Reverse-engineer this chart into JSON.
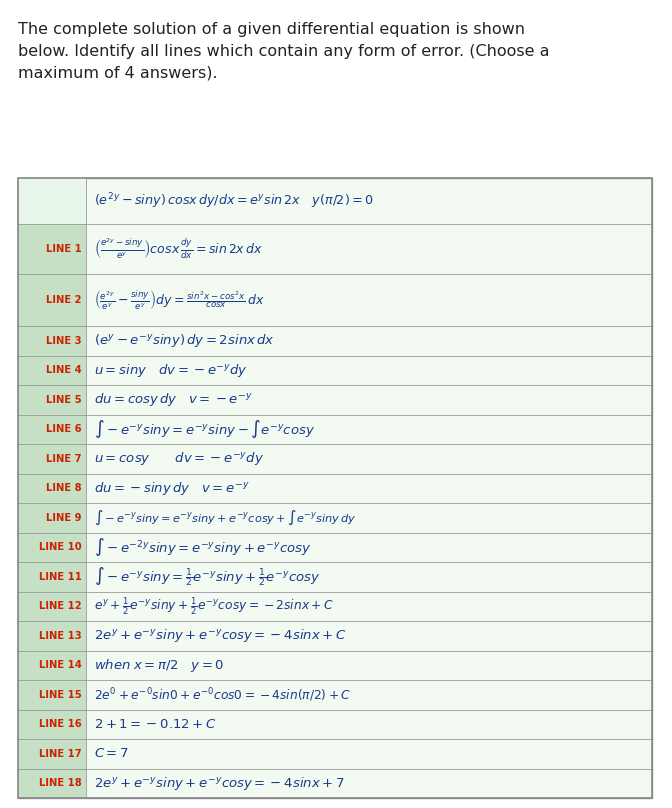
{
  "bg_color": "#ffffff",
  "table_bg": "#f2faf2",
  "col_left_bg": "#c5e0c5",
  "header_row_bg": "#e8f5e9",
  "line_label_color": "#cc2200",
  "content_color": "#1a3a8c",
  "border_color": "#999999",
  "title_lines": [
    "The complete solution of a given differential equation is shown",
    "below. Identify all lines which contain any form of error. (Choose a",
    "maximum of 4 answers)."
  ],
  "lines": [
    {
      "label": "",
      "content": "$(e^{2y} - siny)\\, cosx\\, dy/dx = e^y sin\\,2x \\quad y(\\pi/2)=0$"
    },
    {
      "label": "LINE 1",
      "content": "$\\left(\\frac{e^{2y}-siny}{e^y}\\right) cosx\\, \\frac{dy}{dx} = sin\\,2x\\,dx$"
    },
    {
      "label": "LINE 2",
      "content": "$\\left(\\frac{e^{2y}}{e^y} - \\frac{siny}{e^y}\\right) dy = \\frac{sin^2x - cos^2x}{cosx}\\, dx$"
    },
    {
      "label": "LINE 3",
      "content": "$(e^y - e^{-y}siny)\\, dy = 2sinx\\,dx$"
    },
    {
      "label": "LINE 4",
      "content": "$u = siny \\quad dv = -e^{-y}dy$"
    },
    {
      "label": "LINE 5",
      "content": "$du = cosy\\,dy \\quad v = -e^{-y}$"
    },
    {
      "label": "LINE 6",
      "content": "$\\int-e^{-y}siny = e^{-y}siny - \\int e^{-y}cosy$"
    },
    {
      "label": "LINE 7",
      "content": "$u = cosy \\qquad dv = -e^{-y}dy$"
    },
    {
      "label": "LINE 8",
      "content": "$du = -siny\\,dy \\quad v = e^{-y}$"
    },
    {
      "label": "LINE 9",
      "content": "$\\int-e^{-y}siny = e^{-y}siny + e^{-y}cosy + \\int e^{-y}siny\\,dy$"
    },
    {
      "label": "LINE 10",
      "content": "$\\int-e^{-2y}siny = e^{-y}siny + e^{-y}cosy$"
    },
    {
      "label": "LINE 11",
      "content": "$\\int-e^{-y}siny = \\frac{1}{2}e^{-y}siny + \\frac{1}{2}e^{-y}cosy$"
    },
    {
      "label": "LINE 12",
      "content": "$e^y + \\frac{1}{2}e^{-y}siny + \\frac{1}{2}e^{-y}cosy = -2sinx + C$"
    },
    {
      "label": "LINE 13",
      "content": "$2e^y + e^{-y}siny + e^{-y}cosy = -4sinx + C$"
    },
    {
      "label": "LINE 14",
      "content": "$when\\; x=\\pi/2 \\quad y=0$"
    },
    {
      "label": "LINE 15",
      "content": "$2e^0 + e^{-0}sin0 + e^{-0}cos0 = -4sin(\\pi/2)+C$"
    },
    {
      "label": "LINE 16",
      "content": "$2+1 = -0.12+C$"
    },
    {
      "label": "LINE 17",
      "content": "$C=7$"
    },
    {
      "label": "LINE 18",
      "content": "$2e^y + e^{-y}siny + e^{-y}cosy = -4sinx + 7$"
    }
  ],
  "highlighted_labels": [
    "LINE 1",
    "LINE 2",
    "LINE 3",
    "LINE 4",
    "LINE 5",
    "LINE 6",
    "LINE 7",
    "LINE 8",
    "LINE 9",
    "LINE 10",
    "LINE 11",
    "LINE 12",
    "LINE 13",
    "LINE 14",
    "LINE 15",
    "LINE 16",
    "LINE 17",
    "LINE 18"
  ]
}
